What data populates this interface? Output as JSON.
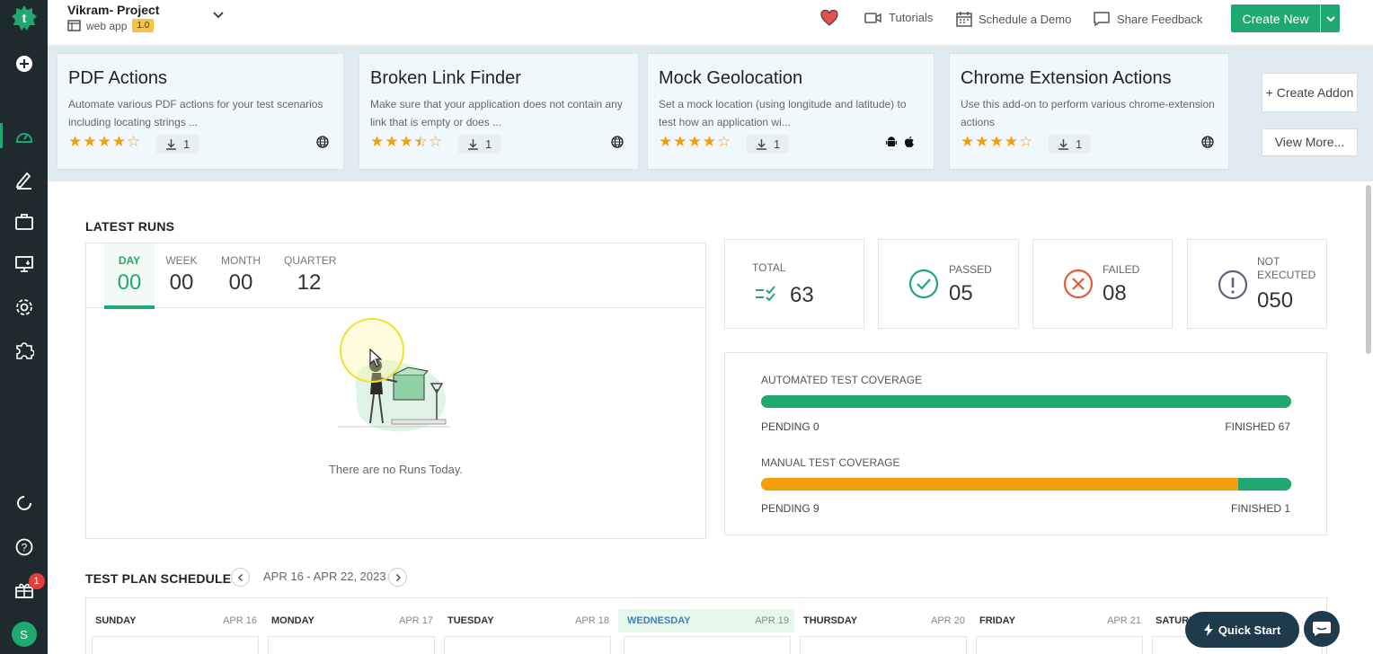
{
  "header": {
    "project_name": "Vikram- Project",
    "app_type": "web app",
    "version": "1.0",
    "tutorials": "Tutorials",
    "schedule_demo": "Schedule a Demo",
    "share_feedback": "Share Feedback",
    "create_new": "Create New"
  },
  "addons": [
    {
      "title": "PDF Actions",
      "desc": "Automate various PDF actions for your test scenarios including locating strings ...",
      "rating": 4,
      "downloads": "1",
      "platforms": [
        "globe"
      ]
    },
    {
      "title": "Broken Link Finder",
      "desc": "Make sure that your application does not contain any link that is empty or does ...",
      "rating": 3.5,
      "downloads": "1",
      "platforms": [
        "globe"
      ]
    },
    {
      "title": "Mock Geolocation",
      "desc": "Set a mock location (using longitude and latitude) to test how an application wi...",
      "rating": 4,
      "downloads": "1",
      "platforms": [
        "android",
        "apple"
      ]
    },
    {
      "title": "Chrome Extension Actions",
      "desc": "Use this add-on to perform various chrome-extension actions",
      "rating": 4,
      "downloads": "1",
      "platforms": [
        "globe"
      ]
    }
  ],
  "addon_actions": {
    "create": "+ Create Addon",
    "view_more": "View More..."
  },
  "latest_runs": {
    "title": "LATEST RUNS",
    "tabs": [
      {
        "label": "DAY",
        "value": "00",
        "active": true
      },
      {
        "label": "WEEK",
        "value": "00",
        "active": false
      },
      {
        "label": "MONTH",
        "value": "00",
        "active": false
      },
      {
        "label": "QUARTER",
        "value": "12",
        "active": false
      }
    ],
    "empty_message": "There are no Runs Today."
  },
  "stats": {
    "total": {
      "label": "TOTAL",
      "value": "63"
    },
    "passed": {
      "label": "PASSED",
      "value": "05"
    },
    "failed": {
      "label": "FAILED",
      "value": "08"
    },
    "not_executed": {
      "label": "NOT EXECUTED",
      "value": "050"
    }
  },
  "coverage": {
    "automated": {
      "label": "AUTOMATED TEST COVERAGE",
      "pending": "PENDING 0",
      "finished": "FINISHED 67",
      "pending_count": 0,
      "finished_count": 67
    },
    "manual": {
      "label": "MANUAL TEST COVERAGE",
      "pending": "PENDING 9",
      "finished": "FINISHED 1",
      "pending_count": 9,
      "finished_count": 1
    }
  },
  "schedule": {
    "title": "TEST PLAN SCHEDULE",
    "range": "APR 16 - APR 22, 2023",
    "days": [
      {
        "name": "SUNDAY",
        "date": "APR 16",
        "today": false
      },
      {
        "name": "MONDAY",
        "date": "APR 17",
        "today": false
      },
      {
        "name": "TUESDAY",
        "date": "APR 18",
        "today": false
      },
      {
        "name": "WEDNESDAY",
        "date": "APR 19",
        "today": true
      },
      {
        "name": "THURSDAY",
        "date": "APR 20",
        "today": false
      },
      {
        "name": "FRIDAY",
        "date": "APR 21",
        "today": false
      },
      {
        "name": "SATURDAY",
        "date": "",
        "today": false
      }
    ]
  },
  "sidebar": {
    "notification_count": "1",
    "avatar_initial": "S"
  },
  "quick_start": "Quick Start",
  "colors": {
    "brand": "#1fa971",
    "sidebar": "#1f2a2e",
    "manual_pending": "#f59e0b",
    "failed": "#e05a3a"
  }
}
